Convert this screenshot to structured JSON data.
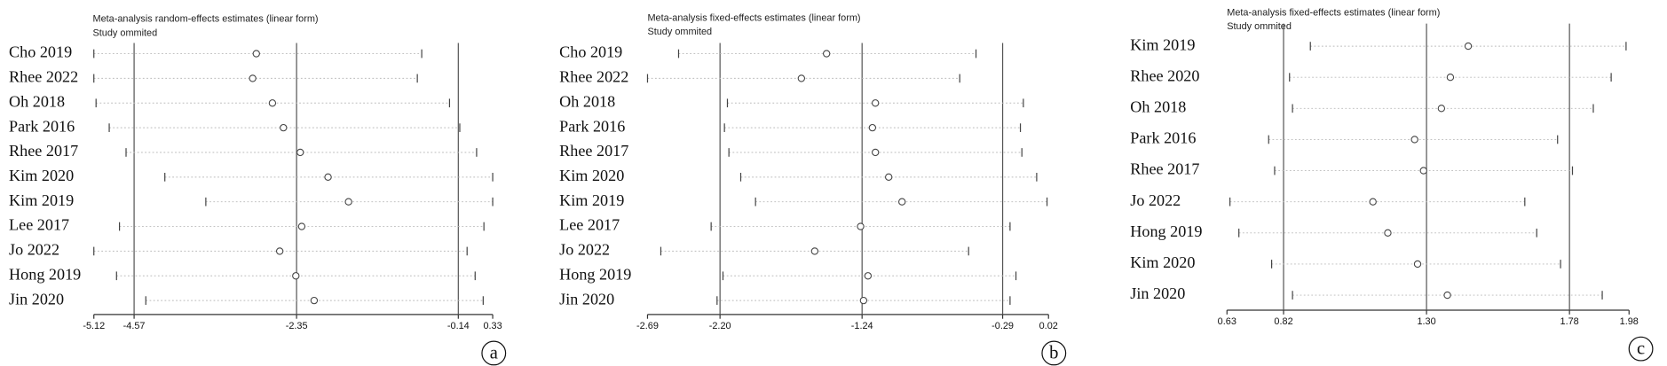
{
  "chart_data": [
    {
      "type": "forest",
      "title": "Meta-analysis random-effects estimates (linear form)",
      "subtitle": "Study ommited",
      "categories": [
        "Cho 2019",
        "Rhee 2022",
        "Oh 2018",
        "Park 2016",
        "Rhee 2017",
        "Kim 2020",
        "Kim 2019",
        "Lee 2017",
        "Jo 2022",
        "Hong 2019",
        "Jin 2020"
      ],
      "values": [
        -2.9,
        -2.95,
        -2.68,
        -2.53,
        -2.3,
        -1.92,
        -1.64,
        -2.28,
        -2.58,
        -2.36,
        -2.11
      ],
      "lower": [
        -5.12,
        -5.12,
        -5.09,
        -4.91,
        -4.68,
        -4.15,
        -3.59,
        -4.77,
        -5.12,
        -4.81,
        -4.41
      ],
      "upper": [
        -0.64,
        -0.7,
        -0.26,
        -0.12,
        0.11,
        0.33,
        0.33,
        0.21,
        -0.02,
        0.09,
        0.2
      ],
      "reference_lines": [
        -4.57,
        -2.35,
        -0.14
      ],
      "xlim": [
        -5.12,
        0.33
      ],
      "xticks": [
        -5.12,
        -4.57,
        -2.35,
        -0.14,
        0.33
      ],
      "panel_label": "a"
    },
    {
      "type": "forest",
      "title": "Meta-analysis fixed-effects estimates (linear form)",
      "subtitle": "Study ommited",
      "categories": [
        "Cho 2019",
        "Rhee 2022",
        "Oh 2018",
        "Park 2016",
        "Rhee 2017",
        "Kim 2020",
        "Kim 2019",
        "Lee 2017",
        "Jo 2022",
        "Hong 2019",
        "Jin 2020"
      ],
      "values": [
        -1.48,
        -1.65,
        -1.15,
        -1.17,
        -1.15,
        -1.06,
        -0.97,
        -1.25,
        -1.56,
        -1.2,
        -1.23
      ],
      "lower": [
        -2.48,
        -2.69,
        -2.15,
        -2.17,
        -2.14,
        -2.06,
        -1.96,
        -2.26,
        -2.6,
        -2.18,
        -2.22
      ],
      "upper": [
        -0.47,
        -0.58,
        -0.15,
        -0.17,
        -0.16,
        -0.06,
        0.01,
        -0.24,
        -0.52,
        -0.2,
        -0.24
      ],
      "reference_lines": [
        -2.2,
        -1.24,
        -0.29
      ],
      "xlim": [
        -2.69,
        0.02
      ],
      "xticks": [
        -2.69,
        {
          "value": -2.2,
          "label": "-2.20"
        },
        -1.24,
        -0.29,
        0.02
      ],
      "panel_label": "b"
    },
    {
      "type": "forest",
      "title": "Meta-analysis fixed-effects estimates (linear form)",
      "subtitle": "Study ommited",
      "categories": [
        "Kim 2019",
        "Rhee 2020",
        "Oh 2018",
        "Park 2016",
        "Rhee 2017",
        "Jo 2022",
        "Hong 2019",
        "Kim 2020",
        "Jin 2020"
      ],
      "values": [
        1.44,
        1.38,
        1.35,
        1.26,
        1.29,
        1.12,
        1.17,
        1.27,
        1.37
      ],
      "lower": [
        0.91,
        0.84,
        0.85,
        0.77,
        0.79,
        0.64,
        0.67,
        0.78,
        0.85
      ],
      "upper": [
        1.97,
        1.92,
        1.86,
        1.74,
        1.79,
        1.63,
        1.67,
        1.75,
        1.89
      ],
      "reference_lines": [
        0.82,
        1.3,
        1.78
      ],
      "xlim": [
        0.63,
        1.98
      ],
      "xticks": [
        0.63,
        0.82,
        {
          "value": 1.3,
          "label": "1.30"
        },
        1.78,
        1.98
      ],
      "panel_label": "c"
    }
  ]
}
